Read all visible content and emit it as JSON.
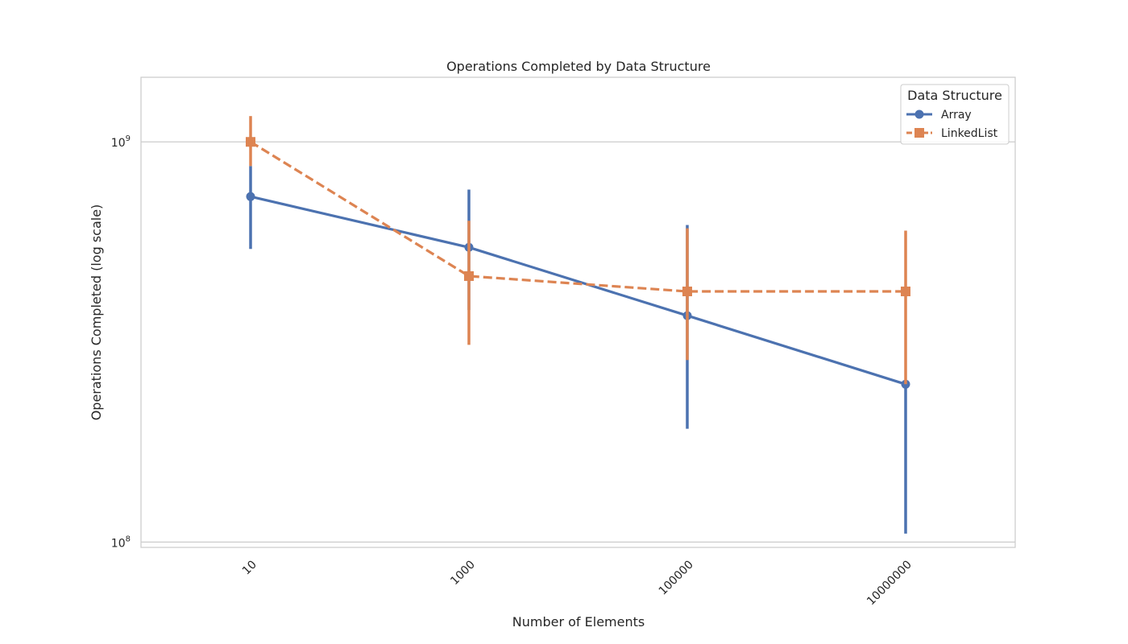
{
  "chart_data": {
    "type": "line",
    "title": "Operations Completed by Data Structure",
    "xlabel": "Number of Elements",
    "ylabel": "Operations Completed (log scale)",
    "yscale": "log",
    "ylim": [
      97000000,
      1450000000
    ],
    "grid": "y",
    "categories": [
      "10",
      "1000",
      "100000",
      "10000000"
    ],
    "y_ticks": [
      {
        "value": 100000000,
        "base": "10",
        "exp": "8"
      },
      {
        "value": 1000000000,
        "base": "10",
        "exp": "9"
      }
    ],
    "legend": {
      "title": "Data Structure",
      "position": "top-right"
    },
    "series": [
      {
        "name": "Array",
        "color": "#4c72b0",
        "marker": "circle",
        "linestyle": "solid",
        "values": [
          730000000,
          545000000,
          368000000,
          248000000
        ],
        "ci_low": [
          540000000,
          380000000,
          192000000,
          105000000
        ],
        "ci_high": [
          870000000,
          760000000,
          620000000,
          248000000
        ]
      },
      {
        "name": "LinkedList",
        "color": "#dd8452",
        "marker": "square",
        "linestyle": "dashed",
        "values": [
          1000000000,
          462000000,
          423000000,
          423000000
        ],
        "ci_low": [
          870000000,
          311000000,
          285000000,
          248000000
        ],
        "ci_high": [
          1160000000,
          635000000,
          608000000,
          600000000
        ]
      }
    ]
  }
}
